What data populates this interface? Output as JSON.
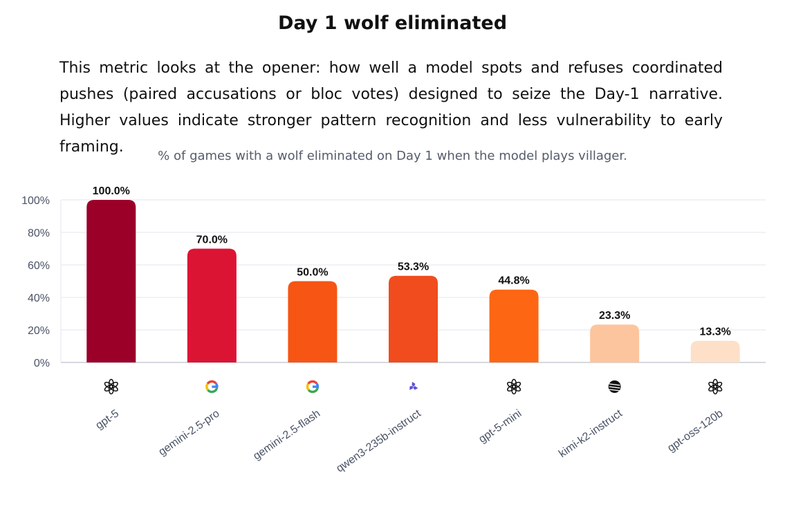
{
  "header": {
    "title": "Day 1 wolf eliminated",
    "description": "This metric looks at the opener: how well a model spots and refuses coordinated pushes (paired accusations or bloc votes) designed to seize the Day-1 narrative. Higher values indicate stronger pattern recognition and less vulnerability to early framing.",
    "subtitle": "% of games with a wolf eliminated on Day 1 when the model plays villager."
  },
  "chart_data": {
    "type": "bar",
    "categories": [
      "gpt-5",
      "gemini-2.5-pro",
      "gemini-2.5-flash",
      "qwen3-235b-instruct",
      "gpt-5-mini",
      "kimi-k2-instruct",
      "gpt-oss-120b"
    ],
    "values": [
      100.0,
      70.0,
      50.0,
      53.3,
      44.8,
      23.3,
      13.3
    ],
    "data_labels": [
      "100.0%",
      "70.0%",
      "50.0%",
      "53.3%",
      "44.8%",
      "23.3%",
      "13.3%"
    ],
    "bar_colors": [
      "#9b0029",
      "#dc1434",
      "#f65514",
      "#f04c1d",
      "#fd6714",
      "#fdc59d",
      "#fde0c7"
    ],
    "provider_icons": [
      "openai-icon",
      "google-icon",
      "google-icon",
      "qwen-icon",
      "openai-icon",
      "kimi-icon",
      "openai-icon"
    ],
    "ylim": [
      0,
      100
    ],
    "yticks": [
      0,
      20,
      40,
      60,
      80,
      100
    ],
    "ytick_labels": [
      "0%",
      "20%",
      "40%",
      "60%",
      "80%",
      "100%"
    ],
    "grid": true,
    "xlabel": "",
    "ylabel": ""
  }
}
